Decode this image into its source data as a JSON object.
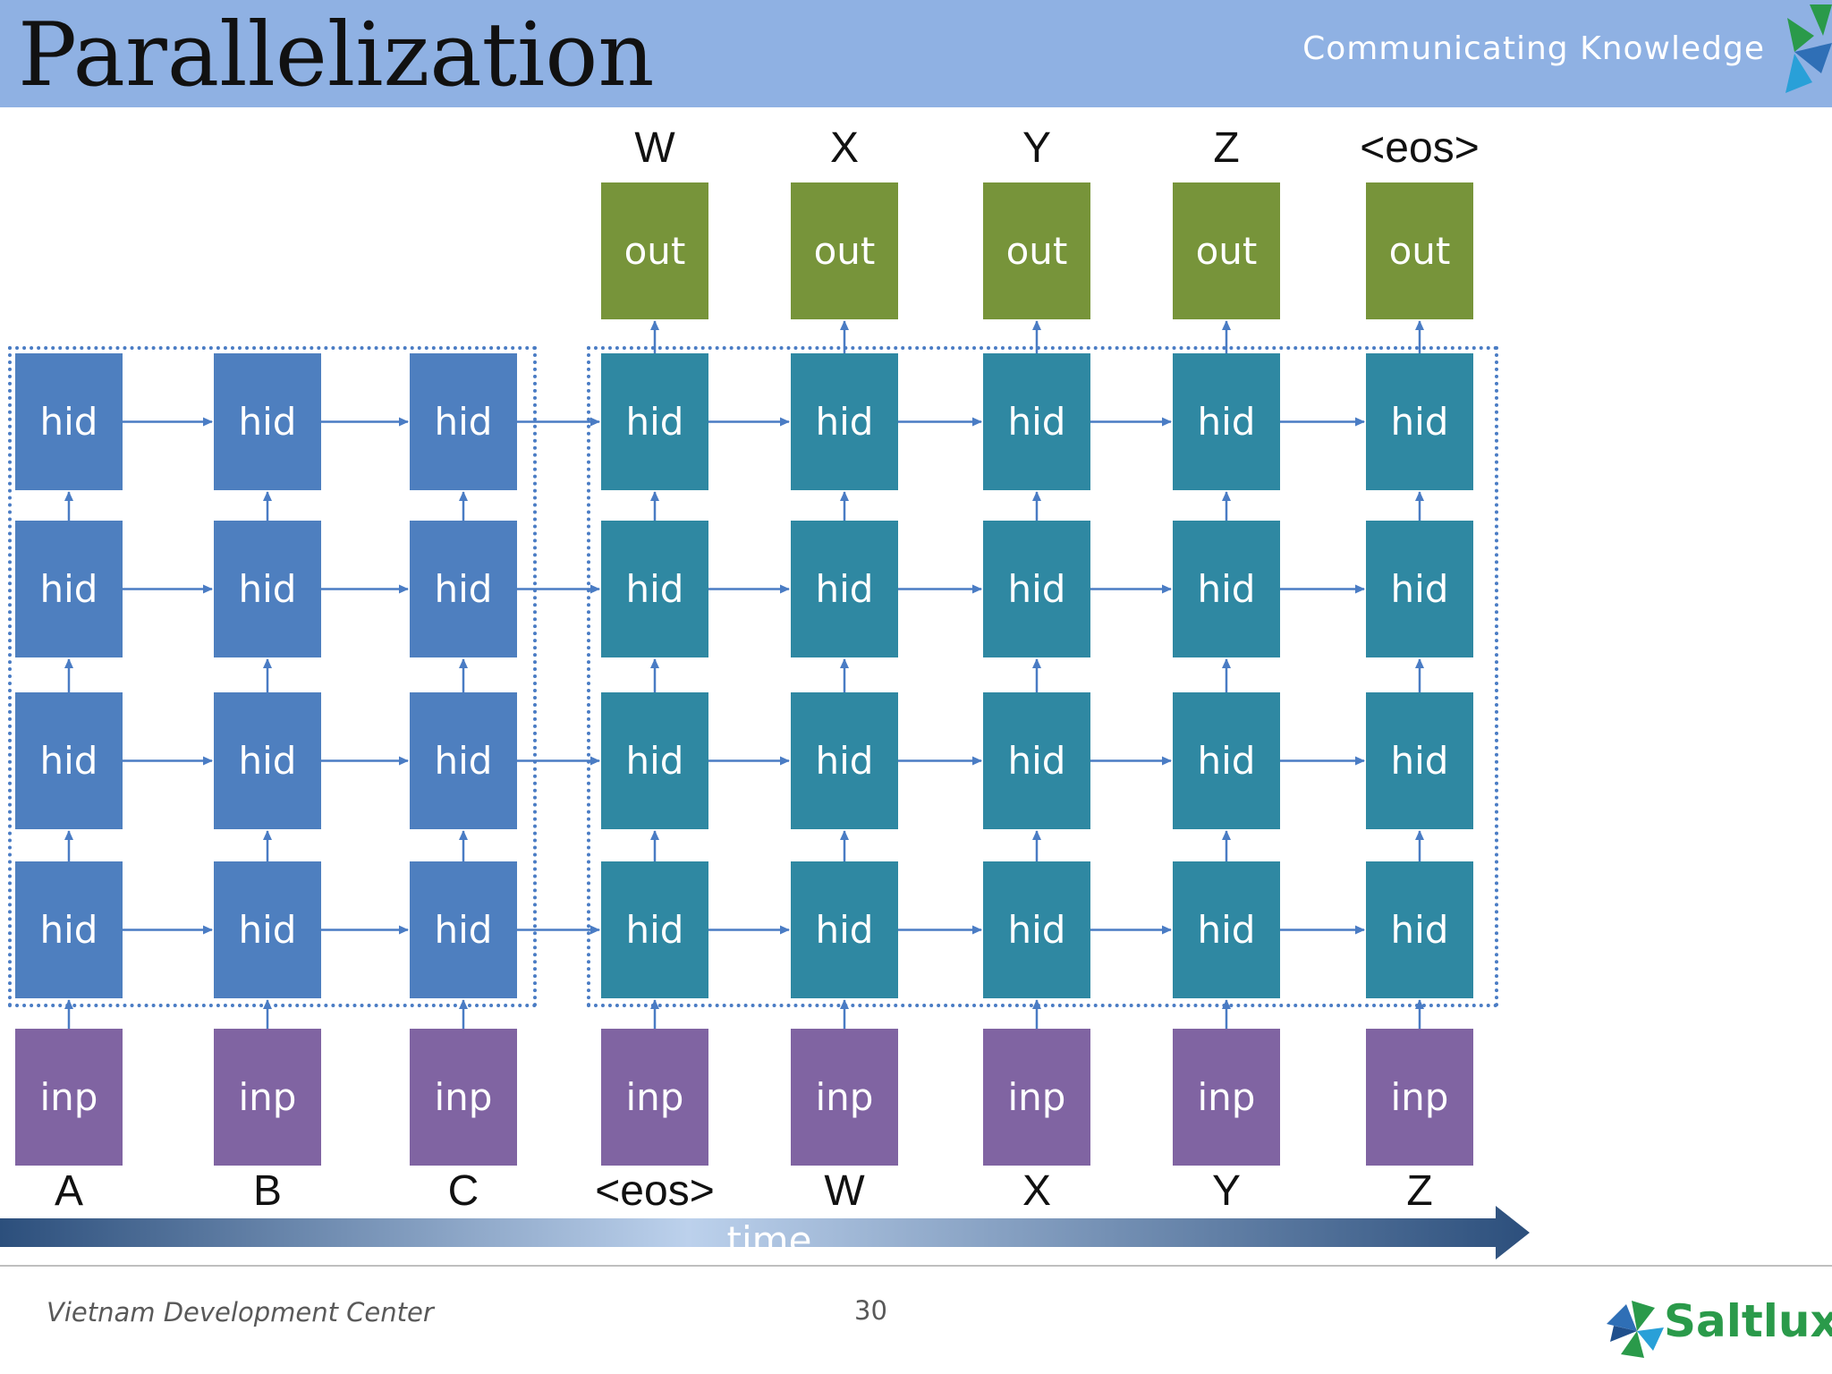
{
  "header": {
    "title": "Parallelization",
    "tagline": "Communicating Knowledge"
  },
  "diagram": {
    "encoder_columns": [
      {
        "input_word": "A",
        "inp": "inp",
        "hid": [
          "hid",
          "hid",
          "hid",
          "hid"
        ]
      },
      {
        "input_word": "B",
        "inp": "inp",
        "hid": [
          "hid",
          "hid",
          "hid",
          "hid"
        ]
      },
      {
        "input_word": "C",
        "inp": "inp",
        "hid": [
          "hid",
          "hid",
          "hid",
          "hid"
        ]
      }
    ],
    "decoder_columns": [
      {
        "input_word": "<eos>",
        "output_word": "W",
        "inp": "inp",
        "out": "out",
        "hid": [
          "hid",
          "hid",
          "hid",
          "hid"
        ]
      },
      {
        "input_word": "W",
        "output_word": "X",
        "inp": "inp",
        "out": "out",
        "hid": [
          "hid",
          "hid",
          "hid",
          "hid"
        ]
      },
      {
        "input_word": "X",
        "output_word": "Y",
        "inp": "inp",
        "out": "out",
        "hid": [
          "hid",
          "hid",
          "hid",
          "hid"
        ]
      },
      {
        "input_word": "Y",
        "output_word": "Z",
        "inp": "inp",
        "out": "out",
        "hid": [
          "hid",
          "hid",
          "hid",
          "hid"
        ]
      },
      {
        "input_word": "Z",
        "output_word": "<eos>",
        "inp": "inp",
        "out": "out",
        "hid": [
          "hid",
          "hid",
          "hid",
          "hid"
        ]
      }
    ],
    "time_label": "time"
  },
  "footer": {
    "left": "Vietnam Development Center",
    "page": "30",
    "logo_text": "Saltlux"
  },
  "colors": {
    "header_bg": "#8fb1e3",
    "encoder_hid": "#4e7fbf",
    "decoder_hid": "#2f88a2",
    "out": "#77943a",
    "inp": "#8064a2",
    "arrow": "#4a7cc4"
  }
}
